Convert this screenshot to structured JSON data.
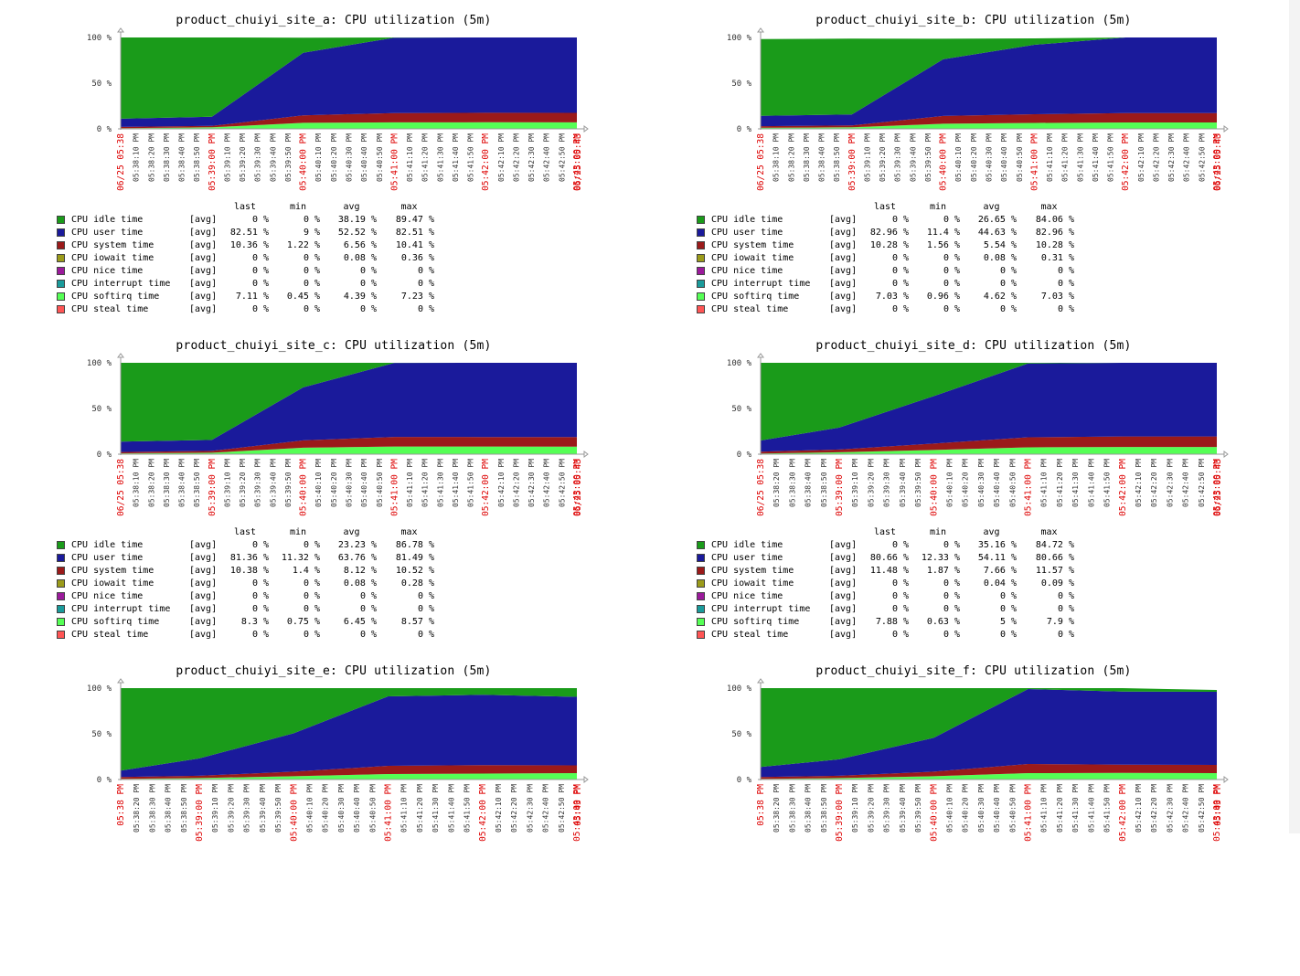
{
  "colors": {
    "idle": "#1a9b1a",
    "user": "#1a1a9b",
    "system": "#9b1a1a",
    "iowait": "#9b9b1a",
    "nice": "#9b1a9b",
    "interrupt": "#1a9b9b",
    "softirq": "#55ff55",
    "steal": "#ff5555",
    "tick_red": "#dd0000",
    "tick_black": "#333333"
  },
  "legend_headers": [
    "last",
    "min",
    "avg",
    "max"
  ],
  "series_defs": [
    {
      "key": "idle",
      "name": "CPU idle time",
      "fn": "[avg]"
    },
    {
      "key": "user",
      "name": "CPU user time",
      "fn": "[avg]"
    },
    {
      "key": "system",
      "name": "CPU system time",
      "fn": "[avg]"
    },
    {
      "key": "iowait",
      "name": "CPU iowait time",
      "fn": "[avg]"
    },
    {
      "key": "nice",
      "name": "CPU nice time",
      "fn": "[avg]"
    },
    {
      "key": "interrupt",
      "name": "CPU interrupt time",
      "fn": "[avg]"
    },
    {
      "key": "softirq",
      "name": "CPU softirq time",
      "fn": "[avg]"
    },
    {
      "key": "steal",
      "name": "CPU steal time",
      "fn": "[avg]"
    }
  ],
  "chart_data": [
    {
      "type": "area",
      "title": "product_chuiyi_site_a: CPU utilization (5m)",
      "ylim": [
        0,
        100
      ],
      "yticks": [
        "0 %",
        "50 %",
        "100 %"
      ],
      "xticks": [
        "06/25 05:38",
        "05:38:10 PM",
        "05:38:20 PM",
        "05:38:30 PM",
        "05:38:40 PM",
        "05:38:50 PM",
        "05:39:00 PM",
        "05:39:10 PM",
        "05:39:20 PM",
        "05:39:30 PM",
        "05:39:40 PM",
        "05:39:50 PM",
        "05:40:00 PM",
        "05:40:10 PM",
        "05:40:20 PM",
        "05:40:30 PM",
        "05:40:40 PM",
        "05:40:50 PM",
        "05:41:00 PM",
        "05:41:10 PM",
        "05:41:20 PM",
        "05:41:30 PM",
        "05:41:40 PM",
        "05:41:50 PM",
        "05:42:00 PM",
        "05:42:10 PM",
        "05:42:20 PM",
        "05:42:30 PM",
        "05:42:40 PM",
        "05:42:50 PM",
        "05:43:00 PM",
        "06/25 05:43"
      ],
      "red_ticks": [
        0,
        6,
        12,
        18,
        24,
        30,
        31
      ],
      "x": [
        0,
        6,
        12,
        18,
        24,
        30
      ],
      "series": [
        {
          "key": "steal",
          "values": [
            0,
            0,
            0,
            0,
            0,
            0
          ]
        },
        {
          "key": "softirq",
          "values": [
            0.5,
            1.5,
            6.5,
            7.1,
            7.2,
            7.1
          ]
        },
        {
          "key": "interrupt",
          "values": [
            0,
            0,
            0,
            0,
            0,
            0
          ]
        },
        {
          "key": "nice",
          "values": [
            0,
            0,
            0,
            0,
            0,
            0
          ]
        },
        {
          "key": "iowait",
          "values": [
            0.3,
            0.2,
            0.1,
            0,
            0,
            0
          ]
        },
        {
          "key": "system",
          "values": [
            1.3,
            1.5,
            8.2,
            10.2,
            10.4,
            10.4
          ]
        },
        {
          "key": "user",
          "values": [
            9,
            10,
            68.5,
            82.5,
            82.4,
            82.5
          ]
        },
        {
          "key": "idle",
          "values": [
            89,
            87,
            16.5,
            0.2,
            0,
            0
          ]
        }
      ],
      "stats": [
        [
          "0 %",
          "0 %",
          "38.19 %",
          "89.47 %"
        ],
        [
          "82.51 %",
          "9 %",
          "52.52 %",
          "82.51 %"
        ],
        [
          "10.36 %",
          "1.22 %",
          "6.56 %",
          "10.41 %"
        ],
        [
          "0 %",
          "0 %",
          "0.08 %",
          "0.36 %"
        ],
        [
          "0 %",
          "0 %",
          "0 %",
          "0 %"
        ],
        [
          "0 %",
          "0 %",
          "0 %",
          "0 %"
        ],
        [
          "7.11 %",
          "0.45 %",
          "4.39 %",
          "7.23 %"
        ],
        [
          "0 %",
          "0 %",
          "0 %",
          "0 %"
        ]
      ]
    },
    {
      "type": "area",
      "title": "product_chuiyi_site_b: CPU utilization (5m)",
      "ylim": [
        0,
        100
      ],
      "yticks": [
        "0 %",
        "50 %",
        "100 %"
      ],
      "xticks": [
        "06/25 05:38",
        "05:38:10 PM",
        "05:38:20 PM",
        "05:38:30 PM",
        "05:38:40 PM",
        "05:38:50 PM",
        "05:39:00 PM",
        "05:39:10 PM",
        "05:39:20 PM",
        "05:39:30 PM",
        "05:39:40 PM",
        "05:39:50 PM",
        "05:40:00 PM",
        "05:40:10 PM",
        "05:40:20 PM",
        "05:40:30 PM",
        "05:40:40 PM",
        "05:40:50 PM",
        "05:41:00 PM",
        "05:41:10 PM",
        "05:41:20 PM",
        "05:41:30 PM",
        "05:41:40 PM",
        "05:41:50 PM",
        "05:42:00 PM",
        "05:42:10 PM",
        "05:42:20 PM",
        "05:42:30 PM",
        "05:42:40 PM",
        "05:42:50 PM",
        "05:43:00 PM",
        "06/25 05:43"
      ],
      "red_ticks": [
        0,
        6,
        12,
        18,
        24,
        30,
        31
      ],
      "x": [
        0,
        6,
        12,
        18,
        24,
        30
      ],
      "series": [
        {
          "key": "steal",
          "values": [
            0,
            0,
            0,
            0,
            0,
            0
          ]
        },
        {
          "key": "softirq",
          "values": [
            1,
            1.5,
            5.5,
            6.5,
            7,
            7
          ]
        },
        {
          "key": "interrupt",
          "values": [
            0,
            0,
            0,
            0,
            0,
            0
          ]
        },
        {
          "key": "nice",
          "values": [
            0,
            0,
            0,
            0,
            0,
            0
          ]
        },
        {
          "key": "iowait",
          "values": [
            0.3,
            0.2,
            0.1,
            0,
            0,
            0
          ]
        },
        {
          "key": "system",
          "values": [
            1.6,
            2,
            8.5,
            9.5,
            10.3,
            10.3
          ]
        },
        {
          "key": "user",
          "values": [
            11.4,
            12,
            62,
            76,
            82.7,
            82.7
          ]
        },
        {
          "key": "idle",
          "values": [
            84,
            83,
            22.5,
            7,
            0,
            0
          ]
        }
      ],
      "stats": [
        [
          "0 %",
          "0 %",
          "26.65 %",
          "84.06 %"
        ],
        [
          "82.96 %",
          "11.4 %",
          "44.63 %",
          "82.96 %"
        ],
        [
          "10.28 %",
          "1.56 %",
          "5.54 %",
          "10.28 %"
        ],
        [
          "0 %",
          "0 %",
          "0.08 %",
          "0.31 %"
        ],
        [
          "0 %",
          "0 %",
          "0 %",
          "0 %"
        ],
        [
          "0 %",
          "0 %",
          "0 %",
          "0 %"
        ],
        [
          "7.03 %",
          "0.96 %",
          "4.62 %",
          "7.03 %"
        ],
        [
          "0 %",
          "0 %",
          "0 %",
          "0 %"
        ]
      ]
    },
    {
      "type": "area",
      "title": "product_chuiyi_site_c: CPU utilization (5m)",
      "ylim": [
        0,
        100
      ],
      "yticks": [
        "0 %",
        "50 %",
        "100 %"
      ],
      "xticks": [
        "06/25 05:38",
        "05:38:10 PM",
        "05:38:20 PM",
        "05:38:30 PM",
        "05:38:40 PM",
        "05:38:50 PM",
        "05:39:00 PM",
        "05:39:10 PM",
        "05:39:20 PM",
        "05:39:30 PM",
        "05:39:40 PM",
        "05:39:50 PM",
        "05:40:00 PM",
        "05:40:10 PM",
        "05:40:20 PM",
        "05:40:30 PM",
        "05:40:40 PM",
        "05:40:50 PM",
        "05:41:00 PM",
        "05:41:10 PM",
        "05:41:20 PM",
        "05:41:30 PM",
        "05:41:40 PM",
        "05:41:50 PM",
        "05:42:00 PM",
        "05:42:10 PM",
        "05:42:20 PM",
        "05:42:30 PM",
        "05:42:40 PM",
        "05:42:50 PM",
        "05:43:00 PM",
        "06/25 05:43"
      ],
      "red_ticks": [
        0,
        6,
        12,
        18,
        24,
        30,
        31
      ],
      "x": [
        0,
        6,
        12,
        18,
        24,
        30
      ],
      "series": [
        {
          "key": "steal",
          "values": [
            0,
            0,
            0,
            0,
            0,
            0
          ]
        },
        {
          "key": "softirq",
          "values": [
            0.8,
            1.5,
            7,
            8.4,
            8.4,
            8.3
          ]
        },
        {
          "key": "interrupt",
          "values": [
            0,
            0,
            0,
            0,
            0,
            0
          ]
        },
        {
          "key": "nice",
          "values": [
            0,
            0,
            0,
            0,
            0,
            0
          ]
        },
        {
          "key": "iowait",
          "values": [
            0.2,
            0.1,
            0.1,
            0,
            0,
            0
          ]
        },
        {
          "key": "system",
          "values": [
            1.4,
            2,
            8,
            10.5,
            10.4,
            10.4
          ]
        },
        {
          "key": "user",
          "values": [
            11.3,
            12,
            58,
            81,
            81.3,
            81.3
          ]
        },
        {
          "key": "idle",
          "values": [
            86.3,
            84.4,
            26.9,
            0.1,
            0,
            0
          ]
        }
      ],
      "stats": [
        [
          "0 %",
          "0 %",
          "23.23 %",
          "86.78 %"
        ],
        [
          "81.36 %",
          "11.32 %",
          "63.76 %",
          "81.49 %"
        ],
        [
          "10.38 %",
          "1.4 %",
          "8.12 %",
          "10.52 %"
        ],
        [
          "0 %",
          "0 %",
          "0.08 %",
          "0.28 %"
        ],
        [
          "0 %",
          "0 %",
          "0 %",
          "0 %"
        ],
        [
          "0 %",
          "0 %",
          "0 %",
          "0 %"
        ],
        [
          "8.3 %",
          "0.75 %",
          "6.45 %",
          "8.57 %"
        ],
        [
          "0 %",
          "0 %",
          "0 %",
          "0 %"
        ]
      ]
    },
    {
      "type": "area",
      "title": "product_chuiyi_site_d: CPU utilization (5m)",
      "ylim": [
        0,
        100
      ],
      "yticks": [
        "0 %",
        "50 %",
        "100 %"
      ],
      "xticks": [
        "06/25 05:38",
        "05:38:20 PM",
        "05:38:30 PM",
        "05:38:40 PM",
        "05:38:50 PM",
        "05:39:00 PM",
        "05:39:10 PM",
        "05:39:20 PM",
        "05:39:30 PM",
        "05:39:40 PM",
        "05:39:50 PM",
        "05:40:00 PM",
        "05:40:10 PM",
        "05:40:20 PM",
        "05:40:30 PM",
        "05:40:40 PM",
        "05:40:50 PM",
        "05:41:00 PM",
        "05:41:10 PM",
        "05:41:20 PM",
        "05:41:30 PM",
        "05:41:40 PM",
        "05:41:50 PM",
        "05:42:00 PM",
        "05:42:10 PM",
        "05:42:20 PM",
        "05:42:30 PM",
        "05:42:40 PM",
        "05:42:50 PM",
        "05:43:00 PM",
        "06/25 05:43"
      ],
      "red_ticks": [
        0,
        5,
        11,
        17,
        23,
        29,
        30
      ],
      "x": [
        0,
        5,
        11,
        17,
        23,
        29
      ],
      "series": [
        {
          "key": "steal",
          "values": [
            0,
            0,
            0,
            0,
            0,
            0
          ]
        },
        {
          "key": "softirq",
          "values": [
            0.7,
            2,
            4.5,
            7.5,
            7.9,
            7.9
          ]
        },
        {
          "key": "interrupt",
          "values": [
            0,
            0,
            0,
            0,
            0,
            0
          ]
        },
        {
          "key": "nice",
          "values": [
            0,
            0,
            0,
            0,
            0,
            0
          ]
        },
        {
          "key": "iowait",
          "values": [
            0.1,
            0.1,
            0.05,
            0,
            0,
            0
          ]
        },
        {
          "key": "system",
          "values": [
            1.9,
            3,
            7,
            11,
            11.5,
            11.5
          ]
        },
        {
          "key": "user",
          "values": [
            12.3,
            24,
            52,
            80.7,
            80.6,
            80.6
          ]
        },
        {
          "key": "idle",
          "values": [
            85,
            70.9,
            36.45,
            0.8,
            0,
            0
          ]
        }
      ],
      "stats": [
        [
          "0 %",
          "0 %",
          "35.16 %",
          "84.72 %"
        ],
        [
          "80.66 %",
          "12.33 %",
          "54.11 %",
          "80.66 %"
        ],
        [
          "11.48 %",
          "1.87 %",
          "7.66 %",
          "11.57 %"
        ],
        [
          "0 %",
          "0 %",
          "0.04 %",
          "0.09 %"
        ],
        [
          "0 %",
          "0 %",
          "0 %",
          "0 %"
        ],
        [
          "0 %",
          "0 %",
          "0 %",
          "0 %"
        ],
        [
          "7.88 %",
          "0.63 %",
          "5 %",
          "7.9 %"
        ],
        [
          "0 %",
          "0 %",
          "0 %",
          "0 %"
        ]
      ]
    },
    {
      "type": "area",
      "title": "product_chuiyi_site_e: CPU utilization (5m)",
      "ylim": [
        0,
        100
      ],
      "yticks": [
        "0 %",
        "50 %",
        "100 %"
      ],
      "xticks": [
        "05:38 PM",
        "05:38:20 PM",
        "05:38:30 PM",
        "05:38:40 PM",
        "05:38:50 PM",
        "05:39:00 PM",
        "05:39:10 PM",
        "05:39:20 PM",
        "05:39:30 PM",
        "05:39:40 PM",
        "05:39:50 PM",
        "05:40:00 PM",
        "05:40:10 PM",
        "05:40:20 PM",
        "05:40:30 PM",
        "05:40:40 PM",
        "05:40:50 PM",
        "05:41:00 PM",
        "05:41:10 PM",
        "05:41:20 PM",
        "05:41:30 PM",
        "05:41:40 PM",
        "05:41:50 PM",
        "05:42:00 PM",
        "05:42:10 PM",
        "05:42:20 PM",
        "05:42:30 PM",
        "05:42:40 PM",
        "05:42:50 PM",
        "05:43:00 PM",
        "05:43 PM"
      ],
      "red_ticks": [
        0,
        5,
        11,
        17,
        23,
        29,
        30
      ],
      "x": [
        0,
        5,
        11,
        17,
        23,
        29
      ],
      "series": [
        {
          "key": "steal",
          "values": [
            0,
            0,
            0,
            0,
            0,
            0
          ]
        },
        {
          "key": "softirq",
          "values": [
            0.5,
            1.5,
            3.5,
            6,
            6.5,
            7
          ]
        },
        {
          "key": "interrupt",
          "values": [
            0,
            0,
            0,
            0,
            0,
            0
          ]
        },
        {
          "key": "nice",
          "values": [
            0,
            0,
            0,
            0,
            0,
            0
          ]
        },
        {
          "key": "iowait",
          "values": [
            0.2,
            0.1,
            0.1,
            0,
            0,
            0
          ]
        },
        {
          "key": "system",
          "values": [
            2,
            2.5,
            5,
            9,
            9.2,
            8.5
          ]
        },
        {
          "key": "user",
          "values": [
            7,
            19,
            42,
            76,
            77,
            75
          ]
        },
        {
          "key": "idle",
          "values": [
            90.3,
            76.9,
            49.4,
            9,
            7.3,
            9.5
          ]
        }
      ],
      "stats": []
    },
    {
      "type": "area",
      "title": "product_chuiyi_site_f: CPU utilization (5m)",
      "ylim": [
        0,
        100
      ],
      "yticks": [
        "0 %",
        "50 %",
        "100 %"
      ],
      "xticks": [
        "05:38 PM",
        "05:38:20 PM",
        "05:38:30 PM",
        "05:38:40 PM",
        "05:38:50 PM",
        "05:39:00 PM",
        "05:39:10 PM",
        "05:39:20 PM",
        "05:39:30 PM",
        "05:39:40 PM",
        "05:39:50 PM",
        "05:40:00 PM",
        "05:40:10 PM",
        "05:40:20 PM",
        "05:40:30 PM",
        "05:40:40 PM",
        "05:40:50 PM",
        "05:41:00 PM",
        "05:41:10 PM",
        "05:41:20 PM",
        "05:41:30 PM",
        "05:41:40 PM",
        "05:41:50 PM",
        "05:42:00 PM",
        "05:42:10 PM",
        "05:42:20 PM",
        "05:42:30 PM",
        "05:42:40 PM",
        "05:42:50 PM",
        "05:43:00 PM",
        "05:43 PM"
      ],
      "red_ticks": [
        0,
        5,
        11,
        17,
        23,
        29,
        30
      ],
      "x": [
        0,
        5,
        11,
        17,
        23,
        29
      ],
      "series": [
        {
          "key": "steal",
          "values": [
            0,
            0,
            0,
            0,
            0,
            0
          ]
        },
        {
          "key": "softirq",
          "values": [
            0.5,
            1.5,
            3.5,
            7,
            7.2,
            7
          ]
        },
        {
          "key": "interrupt",
          "values": [
            0,
            0,
            0,
            0,
            0,
            0
          ]
        },
        {
          "key": "nice",
          "values": [
            0,
            0,
            0,
            0,
            0,
            0
          ]
        },
        {
          "key": "iowait",
          "values": [
            0.2,
            0.1,
            0.1,
            0,
            0,
            0
          ]
        },
        {
          "key": "system",
          "values": [
            2,
            2.5,
            5,
            10,
            9,
            9
          ]
        },
        {
          "key": "user",
          "values": [
            11,
            18,
            37,
            82,
            80,
            80
          ]
        },
        {
          "key": "idle",
          "values": [
            86.3,
            77.9,
            54.4,
            1,
            3.8,
            2
          ]
        }
      ],
      "stats": []
    }
  ]
}
